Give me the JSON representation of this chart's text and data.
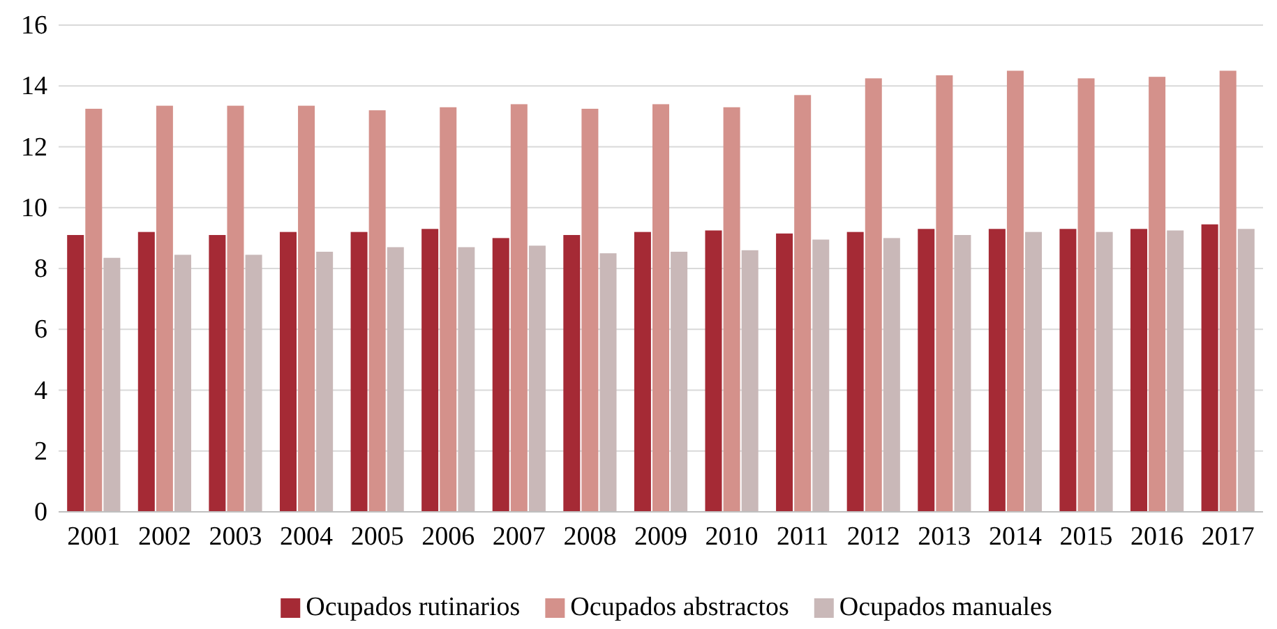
{
  "chart_data": {
    "type": "bar",
    "categories": [
      "2001",
      "2002",
      "2003",
      "2004",
      "2005",
      "2006",
      "2007",
      "2008",
      "2009",
      "2010",
      "2011",
      "2012",
      "2013",
      "2014",
      "2015",
      "2016",
      "2017"
    ],
    "series": [
      {
        "name": "Ocupados rutinarios",
        "color": "#a52a35",
        "values": [
          9.1,
          9.2,
          9.1,
          9.2,
          9.2,
          9.3,
          9.0,
          9.1,
          9.2,
          9.25,
          9.15,
          9.2,
          9.3,
          9.3,
          9.3,
          9.3,
          9.45
        ]
      },
      {
        "name": "Ocupados abstractos",
        "color": "#d4918b",
        "values": [
          13.25,
          13.35,
          13.35,
          13.35,
          13.2,
          13.3,
          13.4,
          13.25,
          13.4,
          13.3,
          13.7,
          14.25,
          14.35,
          14.5,
          14.25,
          14.3,
          14.5
        ]
      },
      {
        "name": "Ocupados manuales",
        "color": "#c9b8b8",
        "values": [
          8.35,
          8.45,
          8.45,
          8.55,
          8.7,
          8.7,
          8.75,
          8.5,
          8.55,
          8.6,
          8.95,
          9.0,
          9.1,
          9.2,
          9.2,
          9.25,
          9.3
        ]
      }
    ],
    "ylim": [
      0,
      16
    ],
    "yticks": [
      0,
      2,
      4,
      6,
      8,
      10,
      12,
      14,
      16
    ],
    "grid": "y",
    "legend": "bottom"
  }
}
